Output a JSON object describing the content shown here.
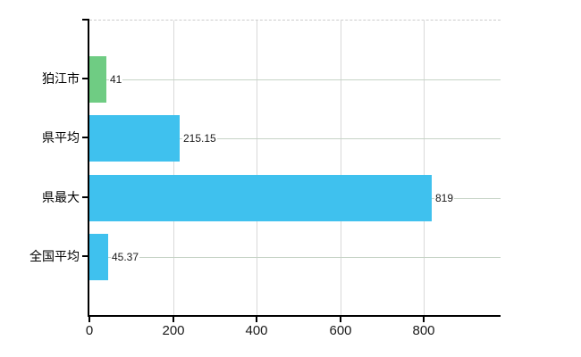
{
  "chart": {
    "background_color": "#ffffff",
    "axis_color": "#000000",
    "vertical_grid_color": "#d9d9d9",
    "horizontal_grid_color": "#c6d3c6",
    "top_border_color": "#cccccc",
    "tick_label_color": "#1a1a1a",
    "category_label_color": "#000000"
  },
  "chart_data": {
    "type": "bar",
    "orientation": "horizontal",
    "title": "",
    "xlabel": "",
    "ylabel": "",
    "legend": "none",
    "grid": "on",
    "categories": [
      "狛江市",
      "県平均",
      "県最大",
      "全国平均"
    ],
    "values": [
      41,
      215.15,
      819,
      45.37
    ],
    "value_labels": [
      "41",
      "215.15",
      "819",
      "45.37"
    ],
    "bar_colors": [
      "#6fcc83",
      "#3fc1ee",
      "#3fc1ee",
      "#3fc1ee"
    ],
    "highlight_color": "#6fcc83",
    "default_bar_color": "#3fc1ee",
    "xlim": [
      0,
      983
    ],
    "x_tick_labels": [
      "0",
      "200",
      "400",
      "600",
      "800"
    ],
    "x_tick_values": [
      0,
      200,
      400,
      600,
      800
    ]
  }
}
